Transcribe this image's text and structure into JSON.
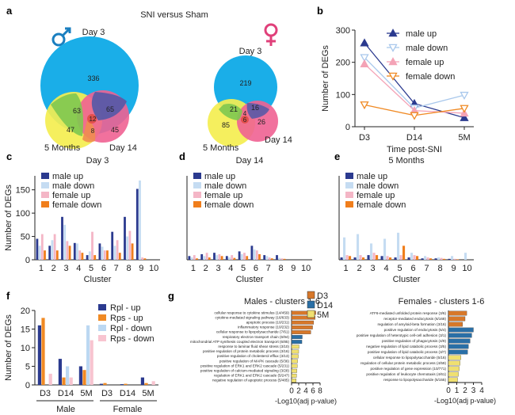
{
  "panel_labels": {
    "a": "a",
    "b": "b",
    "c": "c",
    "d": "d",
    "e": "e",
    "f": "f",
    "g": "g"
  },
  "venn": {
    "title": "SNI versus Sham",
    "male": {
      "labels": {
        "day3": "Day 3",
        "day14": "Day 14",
        "months5": "5 Months"
      },
      "counts": {
        "d3_only": "336",
        "d3_m5": "63",
        "d3_d14": "65",
        "all": "12",
        "m5_only": "47",
        "m5_d14": "8",
        "d14_only": "45"
      }
    },
    "female": {
      "labels": {
        "day3": "Day 3",
        "day14": "Day 14",
        "months5": "5 Months"
      },
      "counts": {
        "d3_only": "219",
        "d3_m5": "21",
        "d3_d14": "16",
        "all": "6",
        "m5_only": "85",
        "m5_d14": "4",
        "d14_only": "26"
      }
    },
    "colors": {
      "day3": "#1aaee8",
      "day14": "#f06292",
      "months5": "#f4ee50",
      "d3_m5": "#7ec850",
      "d3_d14": "#5a5aa6",
      "m5_d14": "#f08c50",
      "all": "#e0483c"
    }
  },
  "chart_data": [
    {
      "id": "b",
      "type": "line",
      "xlabel": "Time post-SNI",
      "ylabel": "Number of DEGs",
      "categories": [
        "D3",
        "D14",
        "5M"
      ],
      "ylim": [
        0,
        300
      ],
      "yticks": [
        0,
        100,
        200,
        300
      ],
      "series": [
        {
          "name": "male up",
          "values": [
            260,
            72,
            28
          ],
          "color": "#2b3a8f",
          "marker": "triangle-up",
          "filled": true
        },
        {
          "name": "male down",
          "values": [
            215,
            58,
            98
          ],
          "color": "#a9c8ec",
          "marker": "triangle-down",
          "filled": false
        },
        {
          "name": "female up",
          "values": [
            195,
            50,
            42
          ],
          "color": "#f4a3b6",
          "marker": "triangle-up",
          "filled": true
        },
        {
          "name": "female down",
          "values": [
            68,
            35,
            57
          ],
          "color": "#f08a24",
          "marker": "triangle-down",
          "filled": false
        }
      ]
    },
    {
      "id": "c",
      "type": "bar",
      "title": "Day 3",
      "xlabel": "Cluster",
      "ylabel": "Number of DEGs",
      "categories": [
        "1",
        "2",
        "3",
        "4",
        "5",
        "6",
        "7",
        "8",
        "9",
        "10"
      ],
      "ylim": [
        0,
        180
      ],
      "yticks": [
        0,
        50,
        100,
        150
      ],
      "series": [
        {
          "name": "male up",
          "values": [
            45,
            30,
            92,
            36,
            10,
            35,
            60,
            92,
            152,
            0
          ]
        },
        {
          "name": "male down",
          "values": [
            30,
            42,
            75,
            35,
            18,
            28,
            30,
            50,
            170,
            0
          ]
        },
        {
          "name": "female up",
          "values": [
            55,
            55,
            40,
            20,
            60,
            20,
            42,
            62,
            5,
            0
          ]
        },
        {
          "name": "female down",
          "values": [
            20,
            20,
            30,
            15,
            10,
            20,
            15,
            35,
            3,
            0
          ]
        }
      ]
    },
    {
      "id": "d",
      "type": "bar",
      "title": "Day 14",
      "xlabel": "Cluster",
      "ylabel": "",
      "categories": [
        "1",
        "2",
        "3",
        "4",
        "5",
        "6",
        "7",
        "8",
        "9",
        "10"
      ],
      "ylim": [
        0,
        180
      ],
      "series": [
        {
          "name": "male up",
          "values": [
            8,
            12,
            15,
            8,
            18,
            30,
            10,
            10,
            0,
            0
          ]
        },
        {
          "name": "male down",
          "values": [
            5,
            8,
            10,
            5,
            12,
            22,
            8,
            4,
            0,
            0
          ]
        },
        {
          "name": "female up",
          "values": [
            10,
            15,
            12,
            10,
            15,
            20,
            5,
            3,
            0,
            0
          ]
        },
        {
          "name": "female down",
          "values": [
            3,
            5,
            8,
            4,
            8,
            12,
            3,
            2,
            0,
            0
          ]
        }
      ]
    },
    {
      "id": "e",
      "type": "bar",
      "title": "5 Months",
      "xlabel": "Cluster",
      "ylabel": "",
      "categories": [
        "1",
        "2",
        "3",
        "4",
        "5",
        "6",
        "7",
        "8",
        "9",
        "10"
      ],
      "ylim": [
        0,
        180
      ],
      "series": [
        {
          "name": "male up",
          "values": [
            5,
            5,
            10,
            8,
            5,
            5,
            3,
            3,
            2,
            0
          ]
        },
        {
          "name": "male down",
          "values": [
            48,
            55,
            35,
            45,
            58,
            15,
            8,
            5,
            8,
            15
          ]
        },
        {
          "name": "female up",
          "values": [
            10,
            10,
            15,
            8,
            10,
            10,
            5,
            4,
            2,
            0
          ]
        },
        {
          "name": "female down",
          "values": [
            8,
            5,
            10,
            5,
            30,
            8,
            3,
            2,
            1,
            0
          ]
        }
      ]
    },
    {
      "id": "f",
      "type": "bar",
      "xlabel": "",
      "ylabel": "Number of DEGs",
      "categories": [
        "D3",
        "D14",
        "5M",
        "D3",
        "D14",
        "5M"
      ],
      "groups": [
        "Male",
        "Female"
      ],
      "ylim": [
        0,
        20
      ],
      "yticks": [
        0,
        5,
        10,
        15,
        20
      ],
      "series": [
        {
          "name": "Rpl - up",
          "values": [
            16,
            7,
            5,
            0.3,
            0.2,
            2
          ]
        },
        {
          "name": "Rps - up",
          "values": [
            18,
            2,
            4,
            0.5,
            0.3,
            0.5
          ]
        },
        {
          "name": "Rpl - down",
          "values": [
            0,
            5,
            16,
            0,
            0,
            0
          ]
        },
        {
          "name": "Rps - down",
          "values": [
            3,
            2,
            12,
            0,
            0,
            1
          ]
        }
      ]
    },
    {
      "id": "g_male",
      "type": "bar",
      "orientation": "horizontal",
      "title": "Males - clusters 1-6",
      "xlabel": "-Log10(adj p-value)",
      "xlim": [
        0,
        8
      ],
      "xticks": [
        0,
        2,
        4,
        6,
        8
      ],
      "legend": [
        "D3",
        "D14",
        "5M"
      ],
      "categories": [
        "cellular response to cytokine stimulus (14/459)",
        "cytokine-mediated signaling pathway (16/633)",
        "apoptotic process (10/231)",
        "inflammatory response (10/232)",
        "cellular response to lipopolysaccharide (7/61)",
        "respiratory electron transport chain (6/94)",
        "mitochondrial ATP synthesis coupled electron transport (6/85)",
        "response to laminar fluid shear stress (3/10)",
        "positive regulation of protein metabolic process (3/16)",
        "positive regulation of cholesterol efflux (3/13)",
        "positive regulation of MAPK cascade (5/36)",
        "positive regulation of ERK1 and ERK2 cascade (5/231)",
        "positive regulation of calcium-mediated signaling (3/28)",
        "regulation of ERK1 and ERK2 cascade (5/247)",
        "negative regulation of apoptotic process (5/485)"
      ],
      "values": [
        6.8,
        6.6,
        6.2,
        5.9,
        5.4,
        3.0,
        2.9,
        2.1,
        2.0,
        1.9,
        1.7,
        1.6,
        1.5,
        1.4,
        1.3
      ],
      "timepoint": [
        "D3",
        "D3",
        "D3",
        "D3",
        "D3",
        "D14",
        "D14",
        "5M",
        "5M",
        "5M",
        "5M",
        "5M",
        "5M",
        "5M",
        "5M"
      ]
    },
    {
      "id": "g_female",
      "type": "bar",
      "orientation": "horizontal",
      "title": "Females - clusters 1-6",
      "xlabel": "-Log10(adj p-value)",
      "xlim": [
        0,
        4
      ],
      "xticks": [
        0,
        1,
        2,
        3,
        4
      ],
      "categories": [
        "ATF6-mediated unfolded protein response (3/6)",
        "receptor-mediated endocytosis (6/168)",
        "regulation of amyloid-beta formation (3/16)",
        "positive regulation of endocytosis (5/4)",
        "positive regulation of heterotypic cell-cell adhesion (3/1)",
        "positive regulation of phagocytosis (4/9)",
        "negative regulation of lipid catabolic process (3/5)",
        "positive regulation of lipid catabolic process (3/7)",
        "cellular response to lipopolysaccharide (5/16)",
        "regulation of cellular protein metabolic process (4/59)",
        "positive regulation of gene expression (10/771)",
        "positive regulation of leukocyte chemotaxis (4/61)",
        "response to lipopolysaccharide (5/155)"
      ],
      "values": [
        2.2,
        2.0,
        1.7,
        3.0,
        2.8,
        2.6,
        2.4,
        2.3,
        1.5,
        1.4,
        1.3,
        1.2,
        1.1
      ],
      "timepoint": [
        "D3",
        "D3",
        "D3",
        "D14",
        "D14",
        "D14",
        "D14",
        "D14",
        "5M",
        "5M",
        "5M",
        "5M",
        "5M"
      ]
    }
  ],
  "bar_colors": {
    "male up": "#2b3a8f",
    "male down": "#c5dcf2",
    "female up": "#f4b6c6",
    "female down": "#f07e1c"
  },
  "f_colors": {
    "Rpl - up": "#2b3a8f",
    "Rps - up": "#f08a24",
    "Rpl - down": "#bcd8f2",
    "Rps - down": "#f8c4d0"
  },
  "g_colors": {
    "D3": "#d7782a",
    "D14": "#2a6fa6",
    "5M": "#f0e070"
  }
}
